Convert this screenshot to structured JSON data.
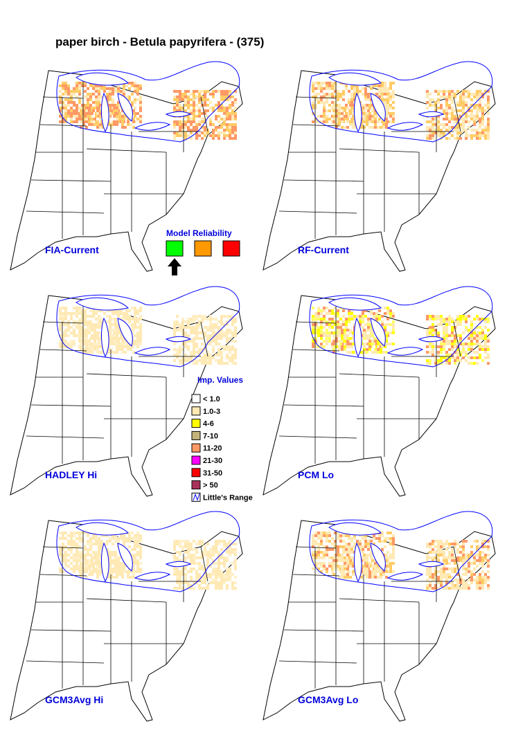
{
  "title": "paper birch - Betula papyrifera - (375)",
  "panels": [
    {
      "label": "FIA-Current"
    },
    {
      "label": "RF-Current"
    },
    {
      "label": "HADLEY Hi"
    },
    {
      "label": "PCM Lo"
    },
    {
      "label": "GCM3Avg Hi"
    },
    {
      "label": "GCM3Avg Lo"
    }
  ],
  "model_reliability": {
    "title": "Model Reliability",
    "colors": [
      "#00ff00",
      "#ff9900",
      "#ff0000"
    ]
  },
  "imp_values": {
    "title": "Imp. Values",
    "items": [
      {
        "label": "< 1.0",
        "color": "#ffffff"
      },
      {
        "label": "1.0-3",
        "color": "#ffe9b4"
      },
      {
        "label": "4-6",
        "color": "#ffff00"
      },
      {
        "label": "7-10",
        "color": "#c4b47c"
      },
      {
        "label": "11-20",
        "color": "#ff9966"
      },
      {
        "label": "21-30",
        "color": "#ff00ff"
      },
      {
        "label": "31-50",
        "color": "#ff0000"
      },
      {
        "label": "> 50",
        "color": "#a8325a"
      },
      {
        "label": "Little's Range"
      }
    ]
  }
}
